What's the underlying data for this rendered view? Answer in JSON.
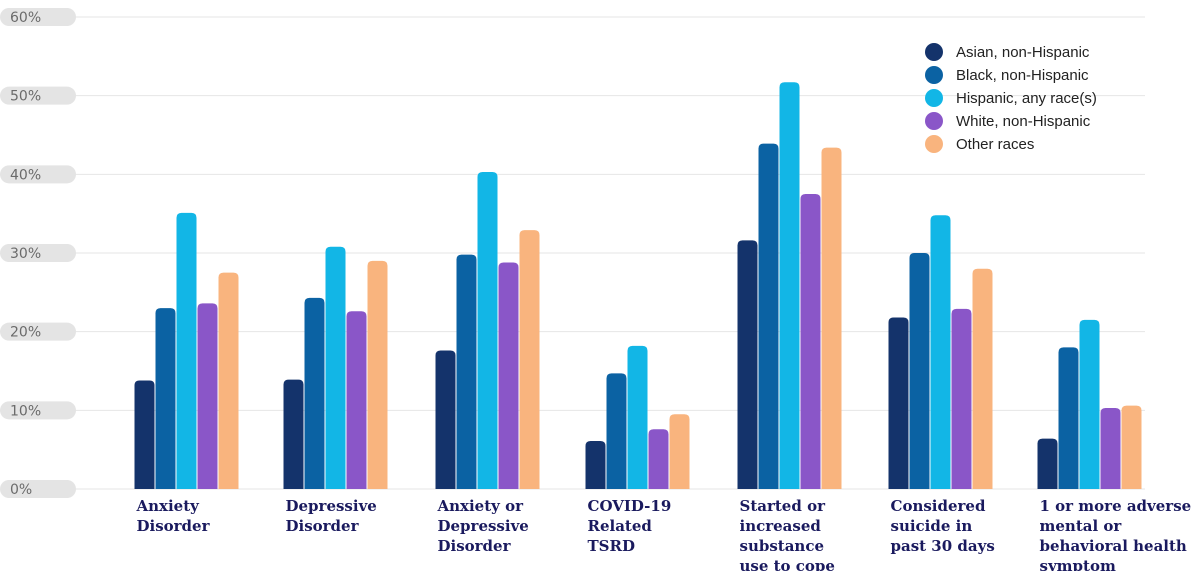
{
  "chart_data": {
    "type": "bar",
    "title": "",
    "xlabel": "",
    "ylabel": "",
    "ylim": [
      0,
      60
    ],
    "yticks": [
      0,
      10,
      20,
      30,
      40,
      50,
      60
    ],
    "ytick_labels": [
      "0%",
      "10%",
      "20%",
      "30%",
      "40%",
      "50%",
      "60%"
    ],
    "grid": true,
    "legend_position": "top-right",
    "categories": [
      [
        "Anxiety",
        "Disorder"
      ],
      [
        "Depressive",
        "Disorder"
      ],
      [
        "Anxiety or",
        "Depressive",
        "Disorder"
      ],
      [
        "COVID-19",
        "Related",
        "TSRD"
      ],
      [
        "Started or",
        "increased",
        "substance",
        "use to cope"
      ],
      [
        "Considered",
        "suicide in",
        "past 30 days"
      ],
      [
        "1 or more adverse",
        "mental or",
        "behavioral health",
        "symptom"
      ]
    ],
    "series": [
      {
        "name": "Asian, non-Hispanic",
        "color": "#14336b",
        "values": [
          13.8,
          13.9,
          17.6,
          6.1,
          31.6,
          21.8,
          6.4
        ]
      },
      {
        "name": "Black, non-Hispanic",
        "color": "#0b62a3",
        "values": [
          23.0,
          24.3,
          29.8,
          14.7,
          43.9,
          30.0,
          18.0
        ]
      },
      {
        "name": "Hispanic, any race(s)",
        "color": "#12b6e6",
        "values": [
          35.1,
          30.8,
          40.3,
          18.2,
          51.7,
          34.8,
          21.5
        ]
      },
      {
        "name": "White, non-Hispanic",
        "color": "#8a56c8",
        "values": [
          23.6,
          22.6,
          28.8,
          7.6,
          37.5,
          22.9,
          10.3
        ]
      },
      {
        "name": "Other races",
        "color": "#f9b47e",
        "values": [
          27.5,
          29.0,
          32.9,
          9.5,
          43.4,
          28.0,
          10.6
        ]
      }
    ]
  }
}
